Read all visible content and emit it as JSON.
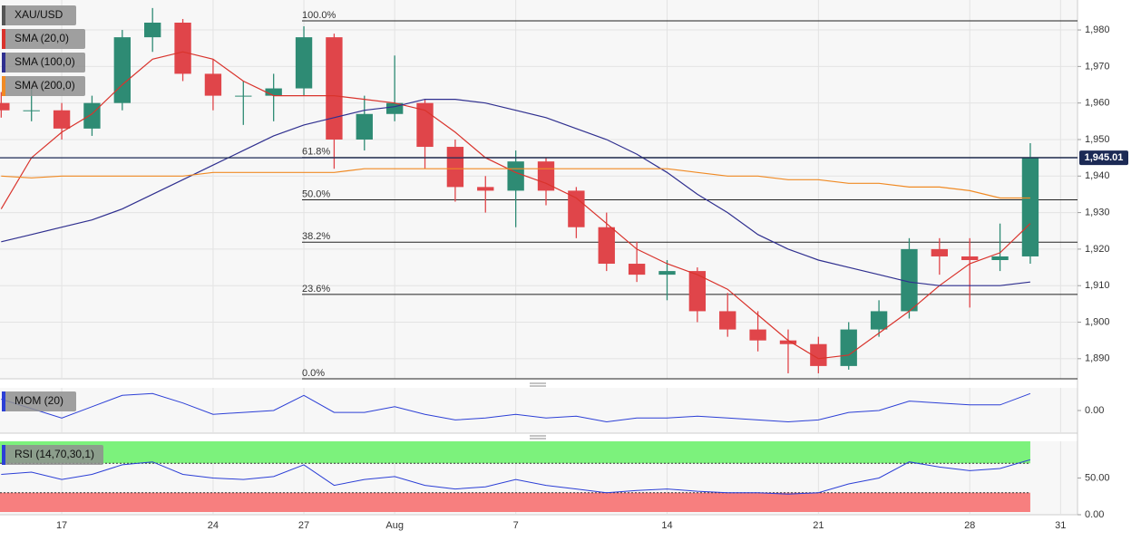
{
  "chart_data": [
    {
      "type": "candlestick",
      "name": "XAU/USD",
      "x": [
        -2,
        -1,
        0,
        1,
        2,
        3,
        4,
        5,
        6,
        7,
        8,
        9,
        10,
        11,
        12,
        13,
        14,
        15,
        16,
        17,
        18,
        19,
        20,
        21,
        22,
        23,
        24,
        25,
        26,
        27,
        28,
        29,
        30,
        31,
        32
      ],
      "open": [
        1960,
        1958,
        1958,
        1953,
        1960,
        1978,
        1982,
        1968,
        1962,
        1962,
        1964,
        1978,
        1950,
        1957,
        1960,
        1948,
        1937,
        1936,
        1944,
        1936,
        1926,
        1916,
        1913,
        1914,
        1903,
        1898,
        1895,
        1894,
        1888,
        1898,
        1903,
        1920,
        1918,
        1917,
        1918
      ],
      "high": [
        1963,
        1964,
        1960,
        1962,
        1980,
        1986,
        1983,
        1972,
        1966,
        1968,
        1981,
        1979,
        1962,
        1973,
        1961,
        1950,
        1940,
        1947,
        1945,
        1937,
        1930,
        1922,
        1917,
        1915,
        1908,
        1903,
        1898,
        1896,
        1900,
        1906,
        1923,
        1923,
        1923,
        1927,
        1949
      ],
      "low": [
        1956,
        1955,
        1950,
        1951,
        1958,
        1974,
        1966,
        1958,
        1954,
        1955,
        1962,
        1942,
        1947,
        1955,
        1942,
        1933,
        1930,
        1926,
        1932,
        1923,
        1914,
        1911,
        1906,
        1900,
        1896,
        1892,
        1886,
        1886,
        1887,
        1896,
        1901,
        1913,
        1904,
        1914,
        1916
      ],
      "close": [
        1958,
        1958,
        1953,
        1960,
        1978,
        1982,
        1968,
        1962,
        1962,
        1964,
        1978,
        1950,
        1957,
        1960,
        1948,
        1937,
        1936,
        1944,
        1936,
        1926,
        1916,
        1913,
        1914,
        1903,
        1898,
        1895,
        1894,
        1888,
        1898,
        1903,
        1920,
        1918,
        1917,
        1918,
        1945
      ],
      "up_color": "#2e8b74",
      "down_color": "#e0454a",
      "series": [
        {
          "name": "SMA (20,0)",
          "color": "#d9332c",
          "values": [
            1931,
            1945,
            1952,
            1957,
            1965,
            1972,
            1974,
            1972,
            1966,
            1962,
            1962,
            1962,
            1961,
            1960,
            1958,
            1952,
            1945,
            1941,
            1938,
            1934,
            1927,
            1920,
            1916,
            1913,
            1909,
            1902,
            1895,
            1890,
            1891,
            1897,
            1903,
            1910,
            1916,
            1919,
            1927
          ]
        },
        {
          "name": "SMA (100,0)",
          "color": "#2f2f8f",
          "values": [
            1922,
            1924,
            1926,
            1928,
            1931,
            1935,
            1939,
            1943,
            1947,
            1951,
            1954,
            1956,
            1958,
            1959,
            1961,
            1961,
            1960,
            1958,
            1956,
            1953,
            1950,
            1946,
            1941,
            1935,
            1930,
            1924,
            1920,
            1917,
            1915,
            1913,
            1911,
            1910,
            1910,
            1910,
            1911
          ]
        },
        {
          "name": "SMA (200,0)",
          "color": "#f08a24",
          "values": [
            1940,
            1939.5,
            1940,
            1940,
            1940,
            1940,
            1940,
            1941,
            1941,
            1941,
            1941,
            1941,
            1942,
            1942,
            1942,
            1942,
            1942,
            1942,
            1942,
            1942,
            1942,
            1942,
            1942,
            1941,
            1940,
            1940,
            1939,
            1939,
            1938,
            1938,
            1937,
            1937,
            1936,
            1934,
            1934
          ]
        }
      ],
      "fibonacci": [
        {
          "value": 1982.5,
          "label": "100.0%"
        },
        {
          "value": 1945.1,
          "label": "61.8%"
        },
        {
          "value": 1933.5,
          "label": "50.0%"
        },
        {
          "value": 1921.9,
          "label": "38.2%"
        },
        {
          "value": 1907.6,
          "label": "23.6%"
        },
        {
          "value": 1884.5,
          "label": "0.0%"
        }
      ],
      "last_price": {
        "value": 1945.01,
        "label": "1,945.01"
      },
      "xlim": [
        -2.04,
        33.56
      ],
      "ylim": [
        1884.5,
        1988.2
      ],
      "xticks": [
        {
          "value": 0,
          "label": "17"
        },
        {
          "value": 5,
          "label": "24"
        },
        {
          "value": 8,
          "label": "27"
        },
        {
          "value": 11,
          "label": "Aug"
        },
        {
          "value": 15,
          "label": "7"
        },
        {
          "value": 20,
          "label": "14"
        },
        {
          "value": 25,
          "label": "21"
        },
        {
          "value": 30,
          "label": "28"
        },
        {
          "value": 33,
          "label": "31"
        }
      ],
      "yticks": [
        {
          "value": 1890,
          "label": "1,890"
        },
        {
          "value": 1900,
          "label": "1,900"
        },
        {
          "value": 1910,
          "label": "1,910"
        },
        {
          "value": 1920,
          "label": "1,920"
        },
        {
          "value": 1930,
          "label": "1,930"
        },
        {
          "value": 1940,
          "label": "1,940"
        },
        {
          "value": 1950,
          "label": "1,950"
        },
        {
          "value": 1960,
          "label": "1,960"
        },
        {
          "value": 1970,
          "label": "1,970"
        },
        {
          "value": 1980,
          "label": "1,980"
        }
      ],
      "grid": true
    },
    {
      "type": "line",
      "name": "MOM (20)",
      "color": "#2c3fd6",
      "values": [
        30,
        5,
        -20,
        10,
        40,
        45,
        20,
        -10,
        -5,
        0,
        40,
        -5,
        -5,
        10,
        -10,
        -25,
        -20,
        -10,
        -20,
        -15,
        -30,
        -20,
        -20,
        -15,
        -20,
        -25,
        -30,
        -25,
        -5,
        0,
        25,
        20,
        15,
        15,
        45
      ],
      "ylim": [
        -60,
        60
      ],
      "yticks": [
        {
          "value": 0,
          "label": "0.00"
        }
      ]
    },
    {
      "type": "line",
      "name": "RSI (14,70,30,1)",
      "color": "#2c3fd6",
      "values": [
        55,
        58,
        48,
        55,
        68,
        72,
        55,
        50,
        48,
        52,
        68,
        40,
        48,
        52,
        40,
        35,
        38,
        48,
        40,
        35,
        30,
        33,
        35,
        32,
        30,
        30,
        28,
        30,
        42,
        50,
        72,
        65,
        60,
        63,
        75
      ],
      "overbought": 70,
      "oversold": 30,
      "ylim": [
        0,
        100
      ],
      "yticks": [
        {
          "value": 0,
          "label": "0.00"
        },
        {
          "value": 50,
          "label": "50.00"
        }
      ]
    }
  ]
}
